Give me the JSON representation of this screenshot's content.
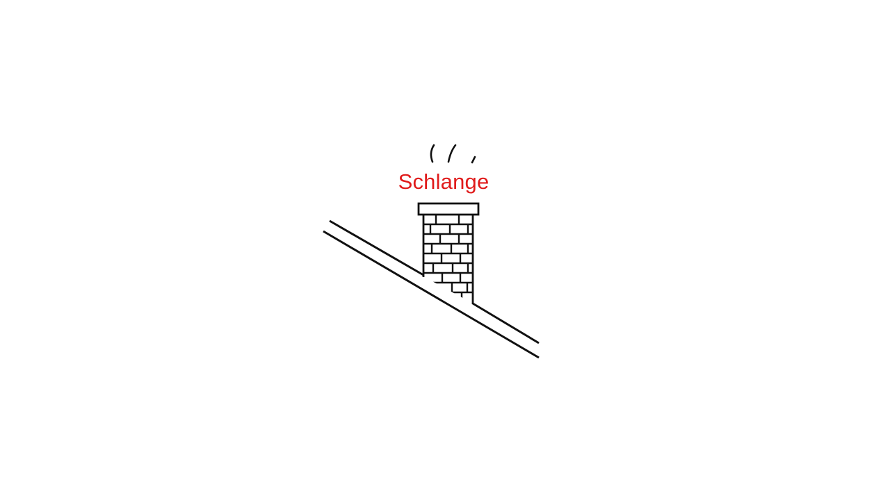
{
  "slide": {
    "label": "Schlange",
    "colors": {
      "label": "#e01b1b",
      "stroke": "#111111",
      "background": "#ffffff"
    },
    "icons": {
      "drawing": "chimney-on-roof-icon",
      "smoke": "smoke-icon"
    }
  }
}
